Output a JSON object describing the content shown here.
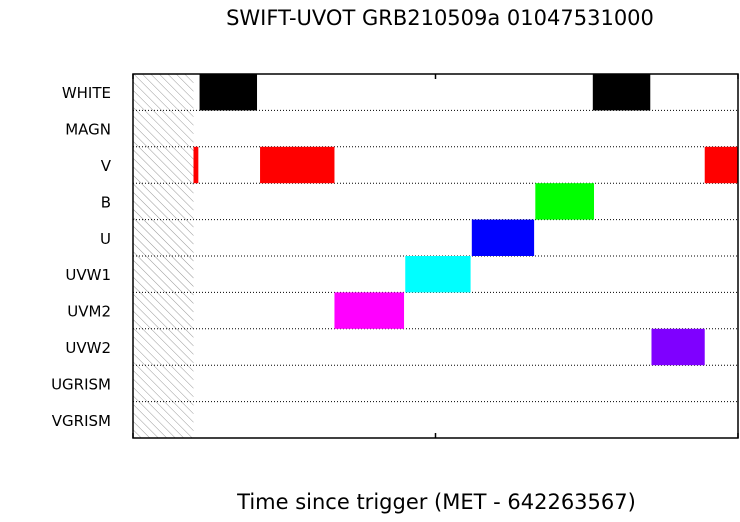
{
  "chart_data": {
    "type": "bar",
    "title": "SWIFT-UVOT GRB210509a 01047531000",
    "xlabel": "Time since trigger (MET - 642263567)",
    "ylabel": "",
    "categories": [
      "WHITE",
      "MAGN",
      "V",
      "B",
      "U",
      "UVW1",
      "UVM2",
      "UVW2",
      "UGRISM",
      "VGRISM"
    ],
    "xlim": [
      0,
      1000
    ],
    "x_tick_labels": [],
    "grid": true,
    "hatched_region": [
      0,
      100
    ],
    "intervals": [
      {
        "filter": "WHITE",
        "start": 110,
        "end": 205,
        "color": "#000000"
      },
      {
        "filter": "WHITE",
        "start": 760,
        "end": 855,
        "color": "#000000"
      },
      {
        "filter": "V",
        "start": 100,
        "end": 108,
        "color": "#ff0000"
      },
      {
        "filter": "V",
        "start": 210,
        "end": 333,
        "color": "#ff0000"
      },
      {
        "filter": "V",
        "start": 945,
        "end": 1008,
        "color": "#ff0000"
      },
      {
        "filter": "B",
        "start": 665,
        "end": 762,
        "color": "#00ff00"
      },
      {
        "filter": "U",
        "start": 560,
        "end": 663,
        "color": "#0000ff"
      },
      {
        "filter": "UVW1",
        "start": 450,
        "end": 558,
        "color": "#00ffff"
      },
      {
        "filter": "UVM2",
        "start": 333,
        "end": 448,
        "color": "#ff00ff"
      },
      {
        "filter": "UVW2",
        "start": 857,
        "end": 945,
        "color": "#7f00ff"
      }
    ]
  }
}
